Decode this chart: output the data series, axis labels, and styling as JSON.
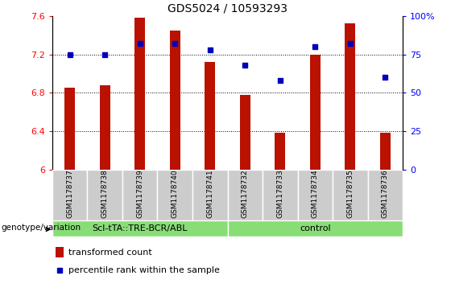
{
  "title": "GDS5024 / 10593293",
  "samples": [
    "GSM1178737",
    "GSM1178738",
    "GSM1178739",
    "GSM1178740",
    "GSM1178741",
    "GSM1178732",
    "GSM1178733",
    "GSM1178734",
    "GSM1178735",
    "GSM1178736"
  ],
  "transformed_count": [
    6.85,
    6.88,
    7.58,
    7.45,
    7.12,
    6.78,
    6.38,
    7.2,
    7.52,
    6.38
  ],
  "percentile_rank": [
    75,
    75,
    82,
    82,
    78,
    68,
    58,
    80,
    82,
    60
  ],
  "ylim_left": [
    6.0,
    7.6
  ],
  "ylim_right": [
    0,
    100
  ],
  "yticks_left": [
    6.0,
    6.4,
    6.8,
    7.2,
    7.6
  ],
  "ytick_labels_left": [
    "6",
    "6.4",
    "6.8",
    "7.2",
    "7.6"
  ],
  "yticks_right": [
    0,
    25,
    50,
    75,
    100
  ],
  "ytick_labels_right": [
    "0",
    "25",
    "50",
    "75",
    "100%"
  ],
  "bar_color": "#bb1100",
  "dot_color": "#0000bb",
  "background_color": "#ffffff",
  "group1_label": "Scl-tTA::TRE-BCR/ABL",
  "group2_label": "control",
  "group1_count": 5,
  "group2_count": 5,
  "group1_bg": "#88dd77",
  "group2_bg": "#88dd77",
  "sample_bg": "#cccccc",
  "legend_bar_label": "transformed count",
  "legend_dot_label": "percentile rank within the sample",
  "genotype_label": "genotype/variation"
}
